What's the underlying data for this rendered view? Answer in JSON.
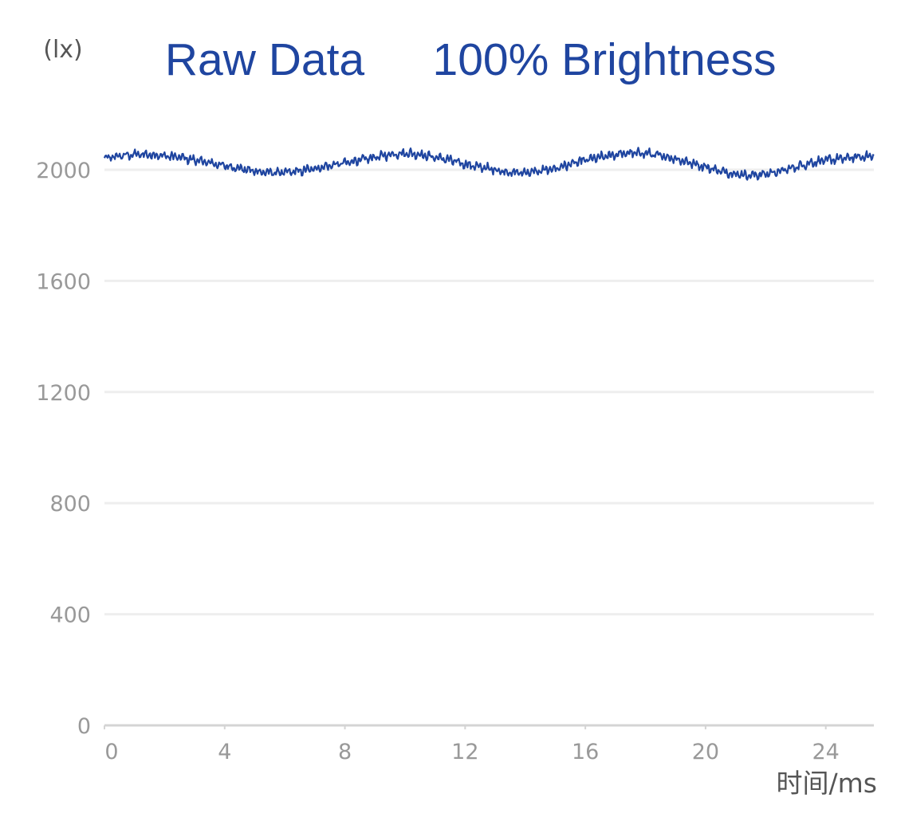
{
  "chart_data": {
    "type": "line",
    "title": "Raw Data",
    "subtitle": "100% Brightness",
    "ylabel": "(lx)",
    "xlabel": "时间/ms",
    "xlim": [
      0,
      25.6
    ],
    "ylim": [
      0,
      2000
    ],
    "x_ticks": [
      0,
      4,
      8,
      12,
      16,
      20,
      24
    ],
    "y_ticks": [
      0,
      400,
      800,
      1200,
      1600,
      2000
    ],
    "grid": true,
    "legend": "none",
    "series": [
      {
        "color": "#1f45a0",
        "x": [
          0,
          0.5,
          1,
          1.5,
          2,
          2.5,
          3,
          3.5,
          4,
          4.5,
          5,
          5.5,
          6,
          6.5,
          7,
          7.5,
          8,
          8.5,
          9,
          9.5,
          10,
          10.5,
          11,
          11.5,
          12,
          12.5,
          13,
          13.5,
          14,
          14.5,
          15,
          15.5,
          16,
          16.5,
          17,
          17.5,
          18,
          18.5,
          19,
          19.5,
          20,
          20.5,
          21,
          21.5,
          22,
          22.5,
          23,
          23.5,
          24,
          24.5,
          25,
          25.6
        ],
        "y": [
          2040,
          2050,
          2055,
          2055,
          2050,
          2045,
          2035,
          2025,
          2015,
          2005,
          1995,
          1990,
          1990,
          1995,
          2005,
          2015,
          2025,
          2035,
          2045,
          2055,
          2060,
          2055,
          2045,
          2035,
          2020,
          2010,
          2000,
          1990,
          1990,
          1995,
          2005,
          2020,
          2035,
          2045,
          2055,
          2060,
          2060,
          2050,
          2040,
          2025,
          2010,
          1995,
          1985,
          1980,
          1985,
          1995,
          2010,
          2025,
          2035,
          2040,
          2045,
          2050
        ]
      }
    ]
  }
}
